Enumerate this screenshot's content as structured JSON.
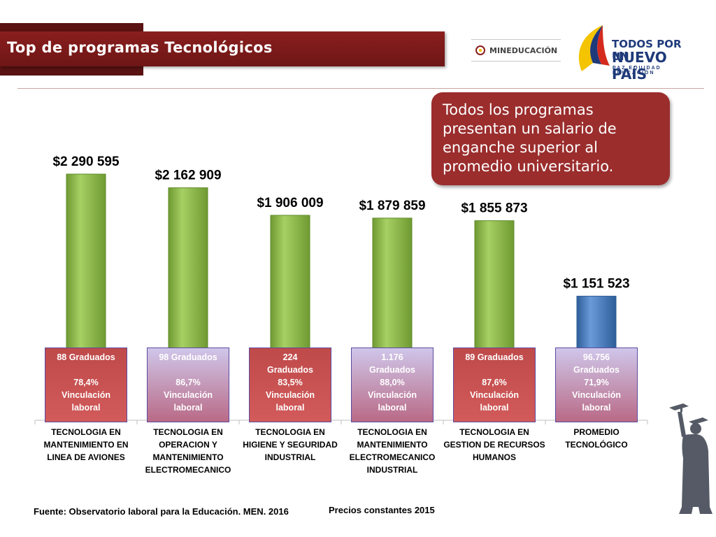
{
  "header": {
    "title": "Top de programas Tecnológicos"
  },
  "logos": {
    "mineducacion": "MINEDUCACIÓN",
    "todos_line1": "TODOS POR UN",
    "todos_line2": "NUEVO PAÍS",
    "todos_line3": "PAZ EQUIDAD EDUCACIÓN"
  },
  "callout": {
    "text": "Todos los programas presentan un salario de enganche superior al promedio universitario."
  },
  "chart_data": {
    "type": "bar",
    "categories": [
      "TECNOLOGIA EN MANTENIMIENTO EN LINEA DE AVIONES",
      "TECNOLOGIA EN OPERACION Y MANTENIMIENTO ELECTROMECANICO",
      "TECNOLOGIA EN HIGIENE Y SEGURIDAD INDUSTRIAL",
      "TECNOLOGIA EN MANTENIMIENTO ELECTROMECANICO INDUSTRIAL",
      "TECNOLOGIA EN GESTION DE RECURSOS HUMANOS",
      "PROMEDIO TECNOLÓGICO"
    ],
    "category_lines": [
      [
        "TECNOLOGIA EN",
        "MANTENIMIENTO EN",
        "LINEA DE AVIONES"
      ],
      [
        "TECNOLOGIA EN",
        "OPERACION Y",
        "MANTENIMIENTO",
        "ELECTROMECANICO"
      ],
      [
        "TECNOLOGIA EN",
        "HIGIENE Y SEGURIDAD",
        "INDUSTRIAL"
      ],
      [
        "TECNOLOGIA EN",
        "MANTENIMIENTO",
        "ELECTROMECANICO",
        "INDUSTRIAL"
      ],
      [
        "TECNOLOGIA EN",
        "GESTION DE RECURSOS",
        "HUMANOS"
      ],
      [
        "PROMEDIO",
        "TECNOLÓGICO"
      ]
    ],
    "values": [
      2290595,
      2162909,
      1906009,
      1879859,
      1855873,
      1151523
    ],
    "value_labels": [
      "$2 290 595",
      "$2 162 909",
      "$1 906 009",
      "$1 879 859",
      "$1 855 873",
      "$1 151 523"
    ],
    "bar_colors": [
      "#92c050",
      "#92c050",
      "#92c050",
      "#92c050",
      "#92c050",
      "#4f81bd"
    ],
    "ylim": [
      0,
      2290595
    ],
    "grid": false,
    "info_boxes": [
      "88 Graduados\n\n78,4%\nVinculación\nlaboral",
      "98 Graduados\n\n86,7%\nVinculación\nlaboral",
      "224\nGraduados\n83,5%\nVinculación\nlaboral",
      "1.176\nGraduados\n88,0%\nVinculación\nlaboral",
      "89  Graduados\n\n87,6%\nVinculación\nlaboral",
      "96.756\nGraduados\n71,9%\nVinculación\nlaboral"
    ],
    "info_box_styles": [
      "dark",
      "light",
      "dark",
      "light",
      "dark",
      "light"
    ]
  },
  "footer": {
    "source": "Fuente: Observatorio laboral para la Educación. MEN. 2016",
    "prices": "Precios constantes  2015"
  }
}
